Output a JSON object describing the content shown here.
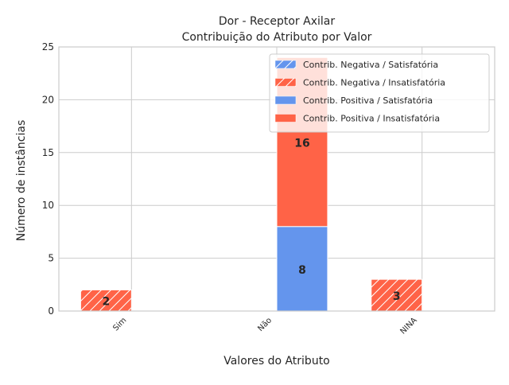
{
  "chart_data": {
    "type": "bar",
    "title": "Dor - Receptor Axilar",
    "subtitle": "Contribuição do Atributo por Valor",
    "xlabel": "Valores do Atributo",
    "ylabel": "Número de instâncias",
    "categories": [
      "Sim",
      "Não",
      "NINA"
    ],
    "ylim": [
      0,
      25
    ],
    "yticks": [
      0,
      5,
      10,
      15,
      20,
      25
    ],
    "grid": true,
    "legend_position": "top-right",
    "groups": [
      "Contrib. Negativa",
      "Contrib. Positiva"
    ],
    "series": [
      {
        "name": "Contrib. Negativa / Satisfatória",
        "group": "Contrib. Negativa",
        "values": [
          0,
          0,
          0
        ],
        "color": "#6495ED",
        "hatch": true
      },
      {
        "name": "Contrib. Negativa / Insatisfatória",
        "group": "Contrib. Negativa",
        "values": [
          2,
          0,
          3
        ],
        "color": "#FF6347",
        "hatch": true
      },
      {
        "name": "Contrib. Positiva / Satisfatória",
        "group": "Contrib. Positiva",
        "values": [
          0,
          8,
          0
        ],
        "color": "#6495ED",
        "hatch": false
      },
      {
        "name": "Contrib. Positiva / Insatisfatória",
        "group": "Contrib. Positiva",
        "values": [
          0,
          16,
          0
        ],
        "color": "#FF6347",
        "hatch": false
      }
    ],
    "data_labels": [
      {
        "category": "Sim",
        "group": "Contrib. Negativa",
        "text": "2"
      },
      {
        "category": "Não",
        "group": "Contrib. Positiva",
        "text": "8"
      },
      {
        "category": "Não",
        "group": "Contrib. Positiva",
        "text": "16"
      },
      {
        "category": "NINA",
        "group": "Contrib. Negativa",
        "text": "3"
      }
    ],
    "colors": {
      "grid": "#cccccc",
      "spine": "#cccccc",
      "text": "#262626",
      "edge": "#ffffff"
    }
  }
}
